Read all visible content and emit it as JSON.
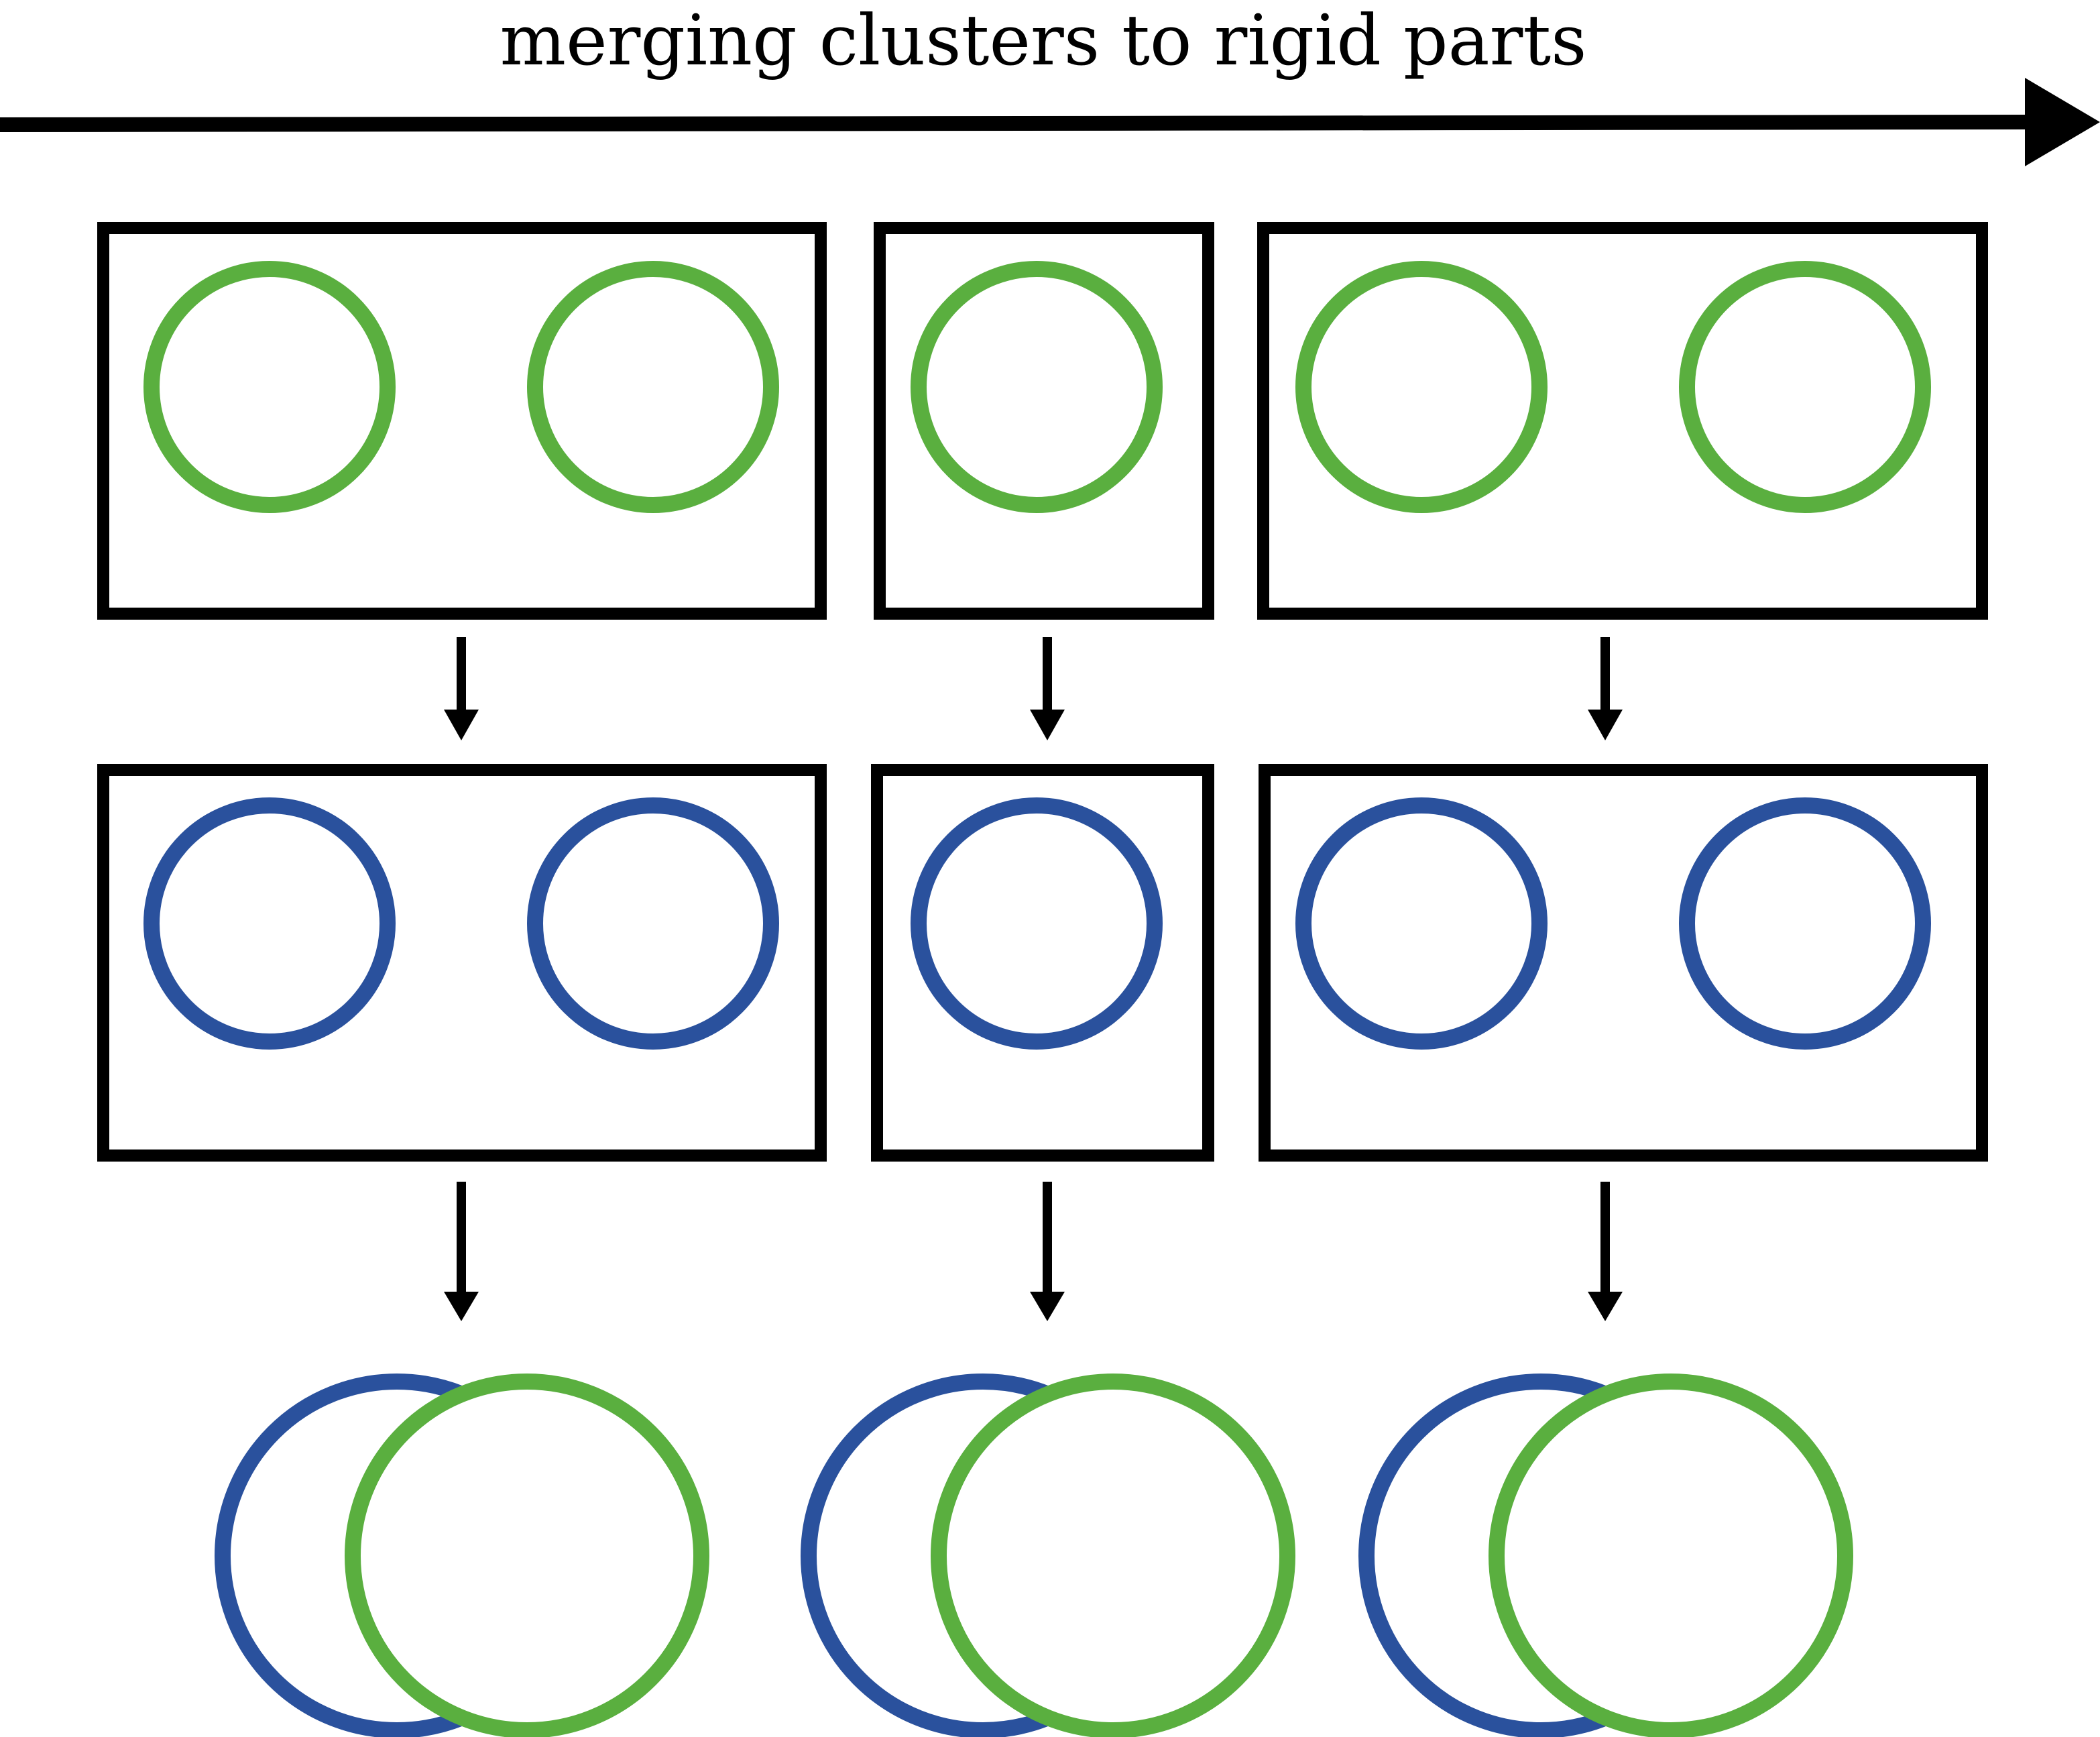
{
  "title": "merging clusters to rigid parts",
  "colors": {
    "stroke": "#000000",
    "green": "#5aaf3f",
    "blue": "#2a519d",
    "background": "#ffffff"
  },
  "diagram": {
    "columns": [
      {
        "name": "left",
        "clusters_per_box": 2
      },
      {
        "name": "middle",
        "clusters_per_box": 1
      },
      {
        "name": "right",
        "clusters_per_box": 2
      }
    ],
    "rows": [
      {
        "name": "green-clusters",
        "color": "green"
      },
      {
        "name": "blue-clusters",
        "color": "blue"
      },
      {
        "name": "merged-rigid-parts",
        "colors": [
          "blue",
          "green"
        ]
      }
    ]
  }
}
